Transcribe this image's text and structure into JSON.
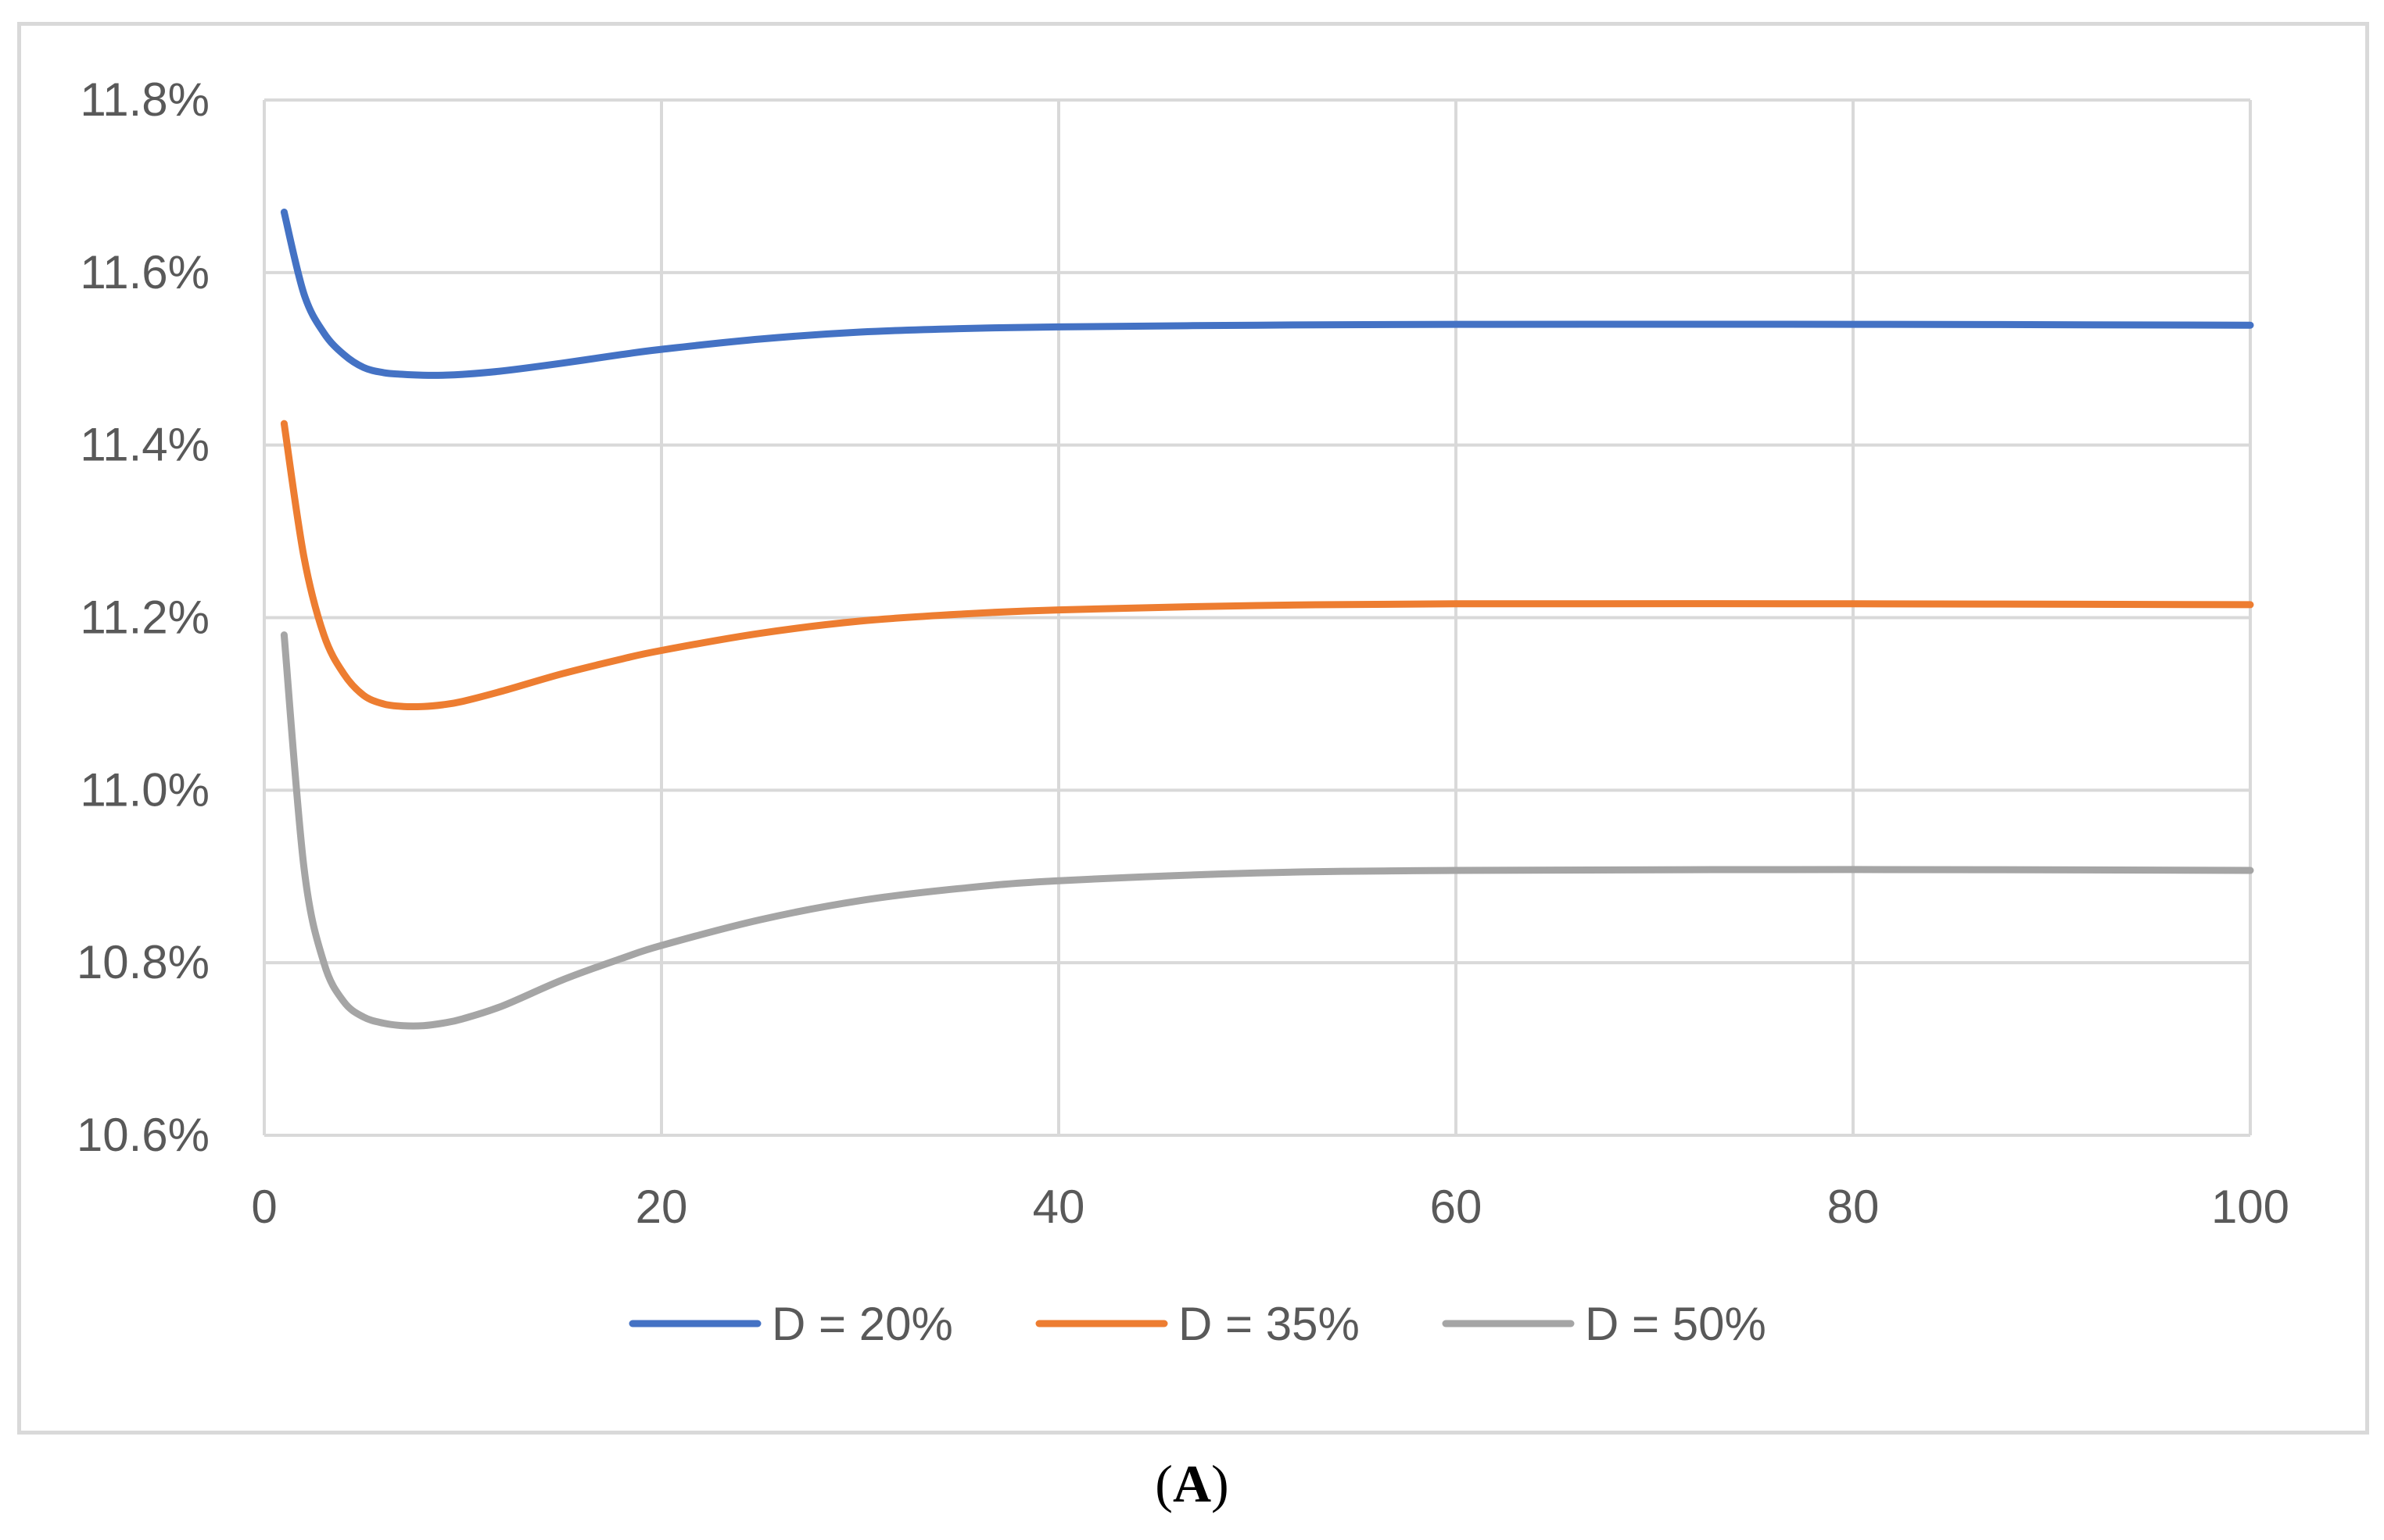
{
  "chart_data": {
    "type": "line",
    "title": "",
    "xlabel": "",
    "ylabel": "",
    "xlim": [
      0,
      100
    ],
    "ylim": [
      10.6,
      11.8
    ],
    "x_ticks": [
      "0",
      "20",
      "40",
      "60",
      "80",
      "100"
    ],
    "y_ticks": [
      "10.6%",
      "10.8%",
      "11.0%",
      "11.2%",
      "11.4%",
      "11.6%",
      "11.8%"
    ],
    "grid": true,
    "legend_position": "bottom",
    "series": [
      {
        "name": "D = 20%",
        "color": "#4472c4",
        "points": [
          [
            1,
            11.67
          ],
          [
            2,
            11.575
          ],
          [
            3,
            11.53
          ],
          [
            4,
            11.505
          ],
          [
            5,
            11.49
          ],
          [
            6,
            11.484
          ],
          [
            7,
            11.482
          ],
          [
            8,
            11.481
          ],
          [
            9,
            11.481
          ],
          [
            10,
            11.482
          ],
          [
            12,
            11.486
          ],
          [
            15,
            11.495
          ],
          [
            18,
            11.505
          ],
          [
            20,
            11.511
          ],
          [
            25,
            11.523
          ],
          [
            30,
            11.531
          ],
          [
            35,
            11.535
          ],
          [
            40,
            11.537
          ],
          [
            50,
            11.539
          ],
          [
            60,
            11.54
          ],
          [
            80,
            11.54
          ],
          [
            100,
            11.539
          ]
        ]
      },
      {
        "name": "D = 35%",
        "color": "#ed7d31",
        "points": [
          [
            1,
            11.425
          ],
          [
            2,
            11.27
          ],
          [
            3,
            11.18
          ],
          [
            4,
            11.135
          ],
          [
            5,
            11.11
          ],
          [
            6,
            11.1
          ],
          [
            7,
            11.097
          ],
          [
            8,
            11.097
          ],
          [
            9,
            11.099
          ],
          [
            10,
            11.103
          ],
          [
            12,
            11.115
          ],
          [
            15,
            11.135
          ],
          [
            18,
            11.152
          ],
          [
            20,
            11.162
          ],
          [
            25,
            11.182
          ],
          [
            30,
            11.196
          ],
          [
            35,
            11.204
          ],
          [
            40,
            11.209
          ],
          [
            50,
            11.214
          ],
          [
            60,
            11.216
          ],
          [
            80,
            11.216
          ],
          [
            100,
            11.215
          ]
        ]
      },
      {
        "name": "D = 50%",
        "color": "#a5a5a5",
        "points": [
          [
            1,
            11.18
          ],
          [
            2,
            10.91
          ],
          [
            3,
            10.8
          ],
          [
            4,
            10.755
          ],
          [
            5,
            10.737
          ],
          [
            6,
            10.73
          ],
          [
            7,
            10.727
          ],
          [
            8,
            10.727
          ],
          [
            9,
            10.73
          ],
          [
            10,
            10.735
          ],
          [
            12,
            10.75
          ],
          [
            15,
            10.78
          ],
          [
            18,
            10.805
          ],
          [
            20,
            10.82
          ],
          [
            25,
            10.85
          ],
          [
            30,
            10.872
          ],
          [
            35,
            10.886
          ],
          [
            40,
            10.895
          ],
          [
            50,
            10.904
          ],
          [
            60,
            10.907
          ],
          [
            80,
            10.908
          ],
          [
            100,
            10.907
          ]
        ]
      }
    ]
  },
  "caption": {
    "open": "(",
    "letter": "A",
    "close": ")"
  }
}
